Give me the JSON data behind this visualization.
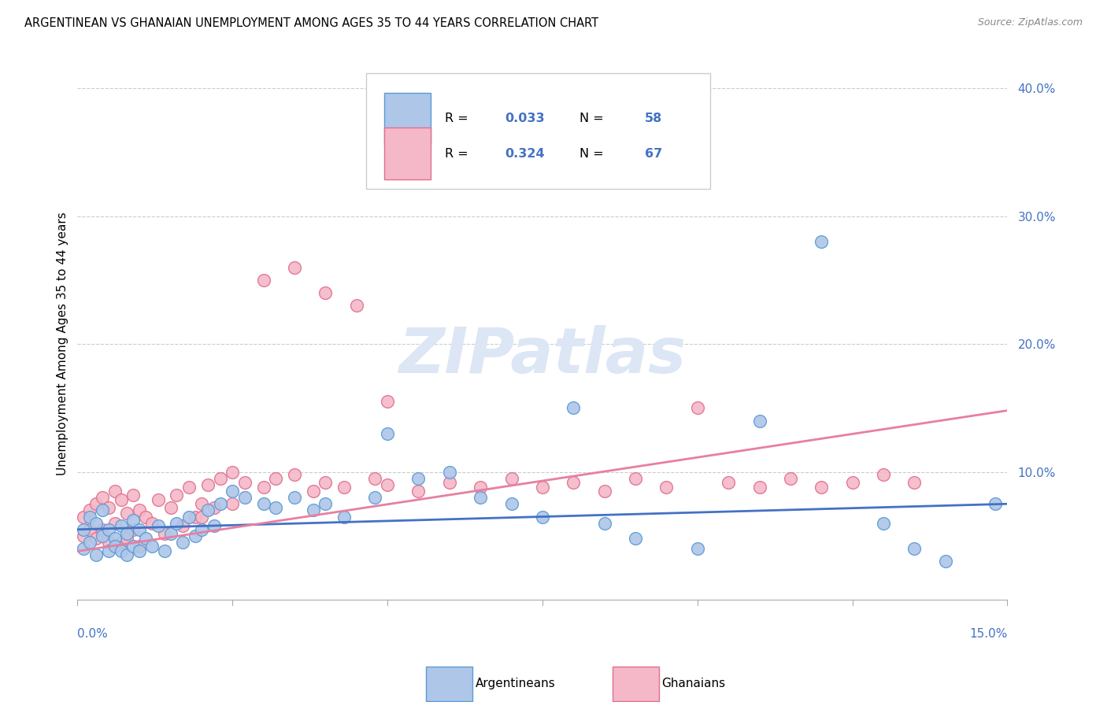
{
  "title": "ARGENTINEAN VS GHANAIAN UNEMPLOYMENT AMONG AGES 35 TO 44 YEARS CORRELATION CHART",
  "source": "Source: ZipAtlas.com",
  "ylabel": "Unemployment Among Ages 35 to 44 years",
  "x_range": [
    0.0,
    0.15
  ],
  "y_range": [
    -0.025,
    0.425
  ],
  "y_ticks": [
    0.0,
    0.1,
    0.2,
    0.3,
    0.4
  ],
  "y_tick_labels": [
    "",
    "10.0%",
    "20.0%",
    "30.0%",
    "40.0%"
  ],
  "argentinean_color": "#aec6e8",
  "argentinean_edge": "#5b9bd5",
  "ghanaian_color": "#f4b8c8",
  "ghanaian_edge": "#e07090",
  "line_arg_color": "#4472c4",
  "line_gha_color": "#e87fa0",
  "watermark_text": "ZIPatlas",
  "watermark_color": "#dce6f5",
  "background_color": "#ffffff",
  "grid_color": "#cccccc",
  "title_color": "#000000",
  "source_color": "#888888",
  "tick_label_color": "#4472c4",
  "legend_R1": "0.033",
  "legend_N1": "58",
  "legend_R2": "0.324",
  "legend_N2": "67",
  "arg_x": [
    0.001,
    0.001,
    0.002,
    0.002,
    0.003,
    0.003,
    0.004,
    0.004,
    0.005,
    0.005,
    0.006,
    0.006,
    0.007,
    0.007,
    0.008,
    0.008,
    0.009,
    0.009,
    0.01,
    0.01,
    0.011,
    0.012,
    0.013,
    0.014,
    0.015,
    0.016,
    0.017,
    0.018,
    0.019,
    0.02,
    0.021,
    0.022,
    0.023,
    0.025,
    0.027,
    0.03,
    0.032,
    0.035,
    0.038,
    0.04,
    0.043,
    0.048,
    0.055,
    0.06,
    0.065,
    0.05,
    0.07,
    0.075,
    0.08,
    0.085,
    0.09,
    0.1,
    0.11,
    0.12,
    0.13,
    0.135,
    0.14,
    0.148
  ],
  "arg_y": [
    0.055,
    0.04,
    0.065,
    0.045,
    0.06,
    0.035,
    0.07,
    0.05,
    0.055,
    0.038,
    0.048,
    0.042,
    0.058,
    0.038,
    0.052,
    0.035,
    0.062,
    0.042,
    0.055,
    0.038,
    0.048,
    0.042,
    0.058,
    0.038,
    0.052,
    0.06,
    0.045,
    0.065,
    0.05,
    0.055,
    0.07,
    0.058,
    0.075,
    0.085,
    0.08,
    0.075,
    0.072,
    0.08,
    0.07,
    0.075,
    0.065,
    0.08,
    0.095,
    0.1,
    0.08,
    0.13,
    0.075,
    0.065,
    0.15,
    0.06,
    0.048,
    0.04,
    0.14,
    0.28,
    0.06,
    0.04,
    0.03,
    0.075
  ],
  "gha_x": [
    0.001,
    0.001,
    0.002,
    0.002,
    0.003,
    0.003,
    0.004,
    0.004,
    0.005,
    0.005,
    0.006,
    0.006,
    0.007,
    0.007,
    0.008,
    0.008,
    0.009,
    0.009,
    0.01,
    0.01,
    0.011,
    0.012,
    0.013,
    0.014,
    0.015,
    0.016,
    0.017,
    0.018,
    0.019,
    0.02,
    0.021,
    0.022,
    0.023,
    0.025,
    0.027,
    0.03,
    0.032,
    0.035,
    0.038,
    0.04,
    0.043,
    0.048,
    0.05,
    0.055,
    0.06,
    0.065,
    0.07,
    0.075,
    0.08,
    0.085,
    0.09,
    0.095,
    0.1,
    0.105,
    0.11,
    0.115,
    0.12,
    0.125,
    0.13,
    0.135,
    0.03,
    0.035,
    0.04,
    0.045,
    0.05,
    0.02,
    0.025
  ],
  "gha_y": [
    0.065,
    0.05,
    0.07,
    0.055,
    0.075,
    0.048,
    0.08,
    0.055,
    0.072,
    0.045,
    0.085,
    0.06,
    0.078,
    0.045,
    0.068,
    0.048,
    0.082,
    0.055,
    0.07,
    0.042,
    0.065,
    0.06,
    0.078,
    0.052,
    0.072,
    0.082,
    0.058,
    0.088,
    0.065,
    0.075,
    0.09,
    0.072,
    0.095,
    0.1,
    0.092,
    0.088,
    0.095,
    0.098,
    0.085,
    0.092,
    0.088,
    0.095,
    0.09,
    0.085,
    0.092,
    0.088,
    0.095,
    0.088,
    0.092,
    0.085,
    0.095,
    0.088,
    0.15,
    0.092,
    0.088,
    0.095,
    0.088,
    0.092,
    0.098,
    0.092,
    0.25,
    0.26,
    0.24,
    0.23,
    0.155,
    0.065,
    0.075
  ]
}
